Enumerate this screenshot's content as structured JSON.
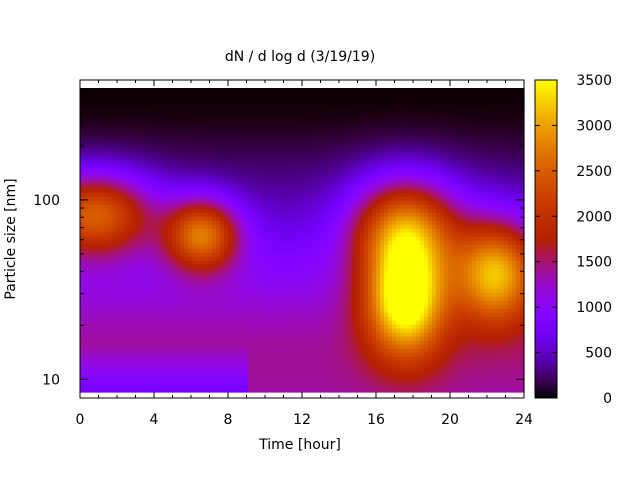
{
  "chart_data": {
    "type": "heatmap",
    "title": "dN / d log d (3/19/19)",
    "xlabel": "Time [hour]",
    "ylabel": "Particle size [nm]",
    "x_range": [
      0,
      24
    ],
    "x_ticks": [
      "0",
      "4",
      "8",
      "12",
      "16",
      "20",
      "24"
    ],
    "y_scale": "log",
    "y_range": [
      8.5,
      420
    ],
    "y_ticks": [
      "10",
      "100"
    ],
    "colorbar": {
      "range": [
        0,
        3500
      ],
      "ticks": [
        "0",
        "500",
        "1000",
        "1500",
        "2000",
        "2500",
        "3000",
        "3500"
      ],
      "colormap": "gnuplot"
    },
    "features": [
      {
        "time": 0.8,
        "diameter": 85,
        "value": 2000,
        "sigma_t": 2.2,
        "sigma_logd": 0.16
      },
      {
        "time": 6.6,
        "diameter": 65,
        "value": 2050,
        "sigma_t": 1.4,
        "sigma_logd": 0.14
      },
      {
        "time": 17.6,
        "diameter": 28,
        "value": 2600,
        "sigma_t": 1.5,
        "sigma_logd": 0.22
      },
      {
        "time": 17.6,
        "diameter": 70,
        "value": 2150,
        "sigma_t": 2.0,
        "sigma_logd": 0.2
      },
      {
        "time": 22.5,
        "diameter": 40,
        "value": 2200,
        "sigma_t": 1.6,
        "sigma_logd": 0.2
      }
    ],
    "grid": false,
    "legend": "none"
  }
}
